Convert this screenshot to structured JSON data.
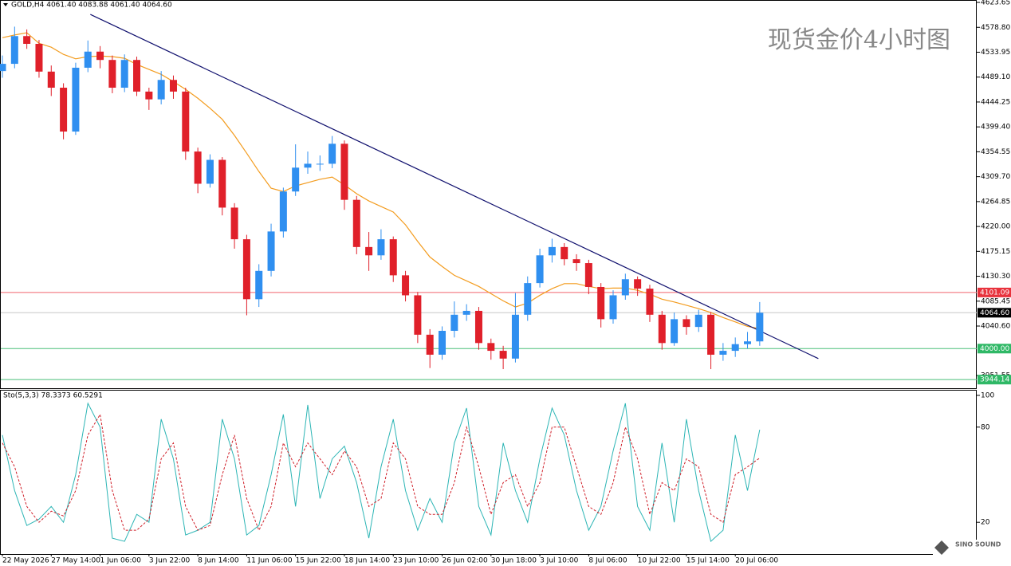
{
  "chart_data": [
    {
      "type": "candlestick",
      "header": "GOLD,H4  4061.40 4083.88 4061.40 4064.60",
      "watermark": "现货金价4小时图",
      "categories": [
        "22 May 2026",
        null,
        null,
        null,
        "27 May 14:00",
        null,
        null,
        null,
        "1 Jun 06:00",
        null,
        null,
        null,
        "3 Jun 22:00",
        null,
        null,
        null,
        "8 Jun 14:00",
        null,
        null,
        null,
        "11 Jun 06:00",
        null,
        null,
        null,
        "15 Jun 22:00",
        null,
        null,
        null,
        "18 Jun 14:00",
        null,
        null,
        null,
        "23 Jun 10:00",
        null,
        null,
        null,
        "26 Jun 02:00",
        null,
        null,
        null,
        "30 Jun 18:00",
        null,
        null,
        null,
        "3 Jul 10:00",
        null,
        null,
        null,
        "8 Jul 06:00",
        null,
        null,
        null,
        "10 Jul 22:00",
        null,
        null,
        null,
        "15 Jul 14:00",
        null,
        null,
        null,
        "20 Jul 06:00",
        null,
        null
      ],
      "open": [
        4500,
        4513,
        4563,
        4549,
        4499,
        4470,
        4391,
        4506,
        4535,
        4520,
        4470,
        4520,
        4463,
        4449,
        4484,
        4463,
        4355,
        4297,
        4340,
        4254,
        4197,
        4089,
        4140,
        4211,
        4283,
        4326,
        4333,
        4333,
        4369,
        4268,
        4183,
        4168,
        4197,
        4132,
        4096,
        4025,
        3989,
        4032,
        4061,
        4068,
        4010,
        3996,
        3982,
        4061,
        4118,
        4168,
        4183,
        4161,
        4154,
        4111,
        4053,
        4096,
        4125,
        4108,
        4061,
        4010,
        4053,
        4039,
        4061,
        3989,
        3996,
        4008,
        4013
      ],
      "high": [
        4528,
        4580,
        4575,
        4556,
        4510,
        4478,
        4515,
        4555,
        4545,
        4528,
        4530,
        4526,
        4470,
        4500,
        4492,
        4470,
        4362,
        4350,
        4345,
        4262,
        4205,
        4152,
        4225,
        4290,
        4368,
        4355,
        4348,
        4383,
        4375,
        4275,
        4210,
        4215,
        4202,
        4140,
        4102,
        4035,
        4040,
        4085,
        4080,
        4075,
        4018,
        4005,
        4100,
        4130,
        4180,
        4198,
        4190,
        4170,
        4160,
        4118,
        4105,
        4135,
        4130,
        4115,
        4068,
        4065,
        4060,
        4070,
        4066,
        4010,
        4020,
        4030,
        4083.88
      ],
      "low": [
        4488,
        4505,
        4540,
        4488,
        4455,
        4377,
        4385,
        4498,
        4505,
        4460,
        4462,
        4455,
        4430,
        4440,
        4450,
        4340,
        4280,
        4290,
        4240,
        4180,
        4060,
        4075,
        4130,
        4200,
        4275,
        4315,
        4320,
        4325,
        4250,
        4170,
        4140,
        4160,
        4120,
        4085,
        4010,
        3965,
        3980,
        4020,
        4050,
        3998,
        3980,
        3963,
        3975,
        4050,
        4110,
        4155,
        4150,
        4140,
        4098,
        4038,
        4045,
        4088,
        4095,
        4048,
        3998,
        4005,
        4025,
        4030,
        3963,
        3978,
        3985,
        4000,
        4005
      ],
      "close": [
        4513,
        4563,
        4549,
        4499,
        4470,
        4391,
        4506,
        4535,
        4520,
        4470,
        4520,
        4463,
        4449,
        4484,
        4463,
        4355,
        4297,
        4340,
        4254,
        4197,
        4089,
        4140,
        4211,
        4283,
        4326,
        4333,
        4333,
        4369,
        4268,
        4183,
        4168,
        4197,
        4132,
        4096,
        4025,
        3989,
        4032,
        4061,
        4068,
        4010,
        3996,
        3982,
        4061,
        4118,
        4168,
        4183,
        4161,
        4154,
        4111,
        4053,
        4096,
        4125,
        4108,
        4061,
        4010,
        4053,
        4039,
        4061,
        3989,
        3996,
        4008,
        4013,
        4064.6
      ],
      "up_color": "#2f8ff0",
      "down_color": "#e0202a",
      "ma": {
        "color": "#f39c1f",
        "values": [
          4560,
          4565,
          4569,
          4550,
          4543,
          4530,
          4522,
          4526,
          4527,
          4526,
          4523,
          4512,
          4503,
          4494,
          4481,
          4467,
          4451,
          4433,
          4413,
          4384,
          4352,
          4319,
          4289,
          4283,
          4293,
          4299,
          4305,
          4309,
          4295,
          4279,
          4266,
          4256,
          4246,
          4223,
          4193,
          4165,
          4148,
          4132,
          4122,
          4112,
          4099,
          4086,
          4075,
          4082,
          4096,
          4108,
          4117,
          4117,
          4112,
          4108,
          4109,
          4109,
          4105,
          4098,
          4089,
          4084,
          4078,
          4072,
          4065,
          4056,
          4048,
          4040,
          4036
        ]
      },
      "trendline": {
        "x": [
          7.2,
          66.8
        ],
        "y": [
          4602,
          3982
        ],
        "color": "#10106e"
      },
      "price_lines": [
        {
          "value": 4101.09,
          "color": "#f0646e",
          "box": "#e8323c"
        },
        {
          "value": 4064.6,
          "label": "4064.60",
          "color": "#c8c8c8",
          "box": "#000000"
        },
        {
          "value": 4000,
          "label": "4000.00",
          "color": "#4cbf7a",
          "box": "#2fb866"
        },
        {
          "value": 3944.14,
          "color": "#4cbf7a",
          "box": "#2fb866"
        }
      ],
      "ylim": [
        3928.6,
        4628.0
      ],
      "yticks": [
        {
          "value": 4623.65,
          "label": "4623.65"
        },
        {
          "value": 4578.8,
          "label": "4578.80"
        },
        {
          "value": 4533.95,
          "label": "4533.95"
        },
        {
          "value": 4489.1,
          "label": "4489.10"
        },
        {
          "value": 4444.25,
          "label": "4444.25"
        },
        {
          "value": 4399.4,
          "label": "4399.40"
        },
        {
          "value": 4354.55,
          "label": "4354.55"
        },
        {
          "value": 4309.7,
          "label": "4309.70"
        },
        {
          "value": 4264.85,
          "label": "4264.85"
        },
        {
          "value": 4220,
          "label": "4220.00"
        },
        {
          "value": 4175.15,
          "label": "4175.15"
        },
        {
          "value": 4130.3,
          "label": "4130.30"
        },
        {
          "value": 4085.45,
          "label": "4085.45"
        },
        {
          "value": 4040.6,
          "label": "4040.60"
        },
        {
          "value": 3951.55,
          "label": "3951.55"
        }
      ]
    },
    {
      "type": "line",
      "title": "Sto(5,3,3) 78.3373 60.5291",
      "series": [
        {
          "color": "#2cb5b5",
          "values": [
            75,
            40,
            18,
            22,
            30,
            20,
            50,
            95,
            80,
            10,
            8,
            25,
            20,
            85,
            60,
            12,
            15,
            20,
            85,
            60,
            12,
            18,
            50,
            88,
            30,
            94,
            35,
            60,
            68,
            45,
            10,
            55,
            85,
            40,
            15,
            35,
            20,
            70,
            92,
            30,
            12,
            70,
            40,
            20,
            60,
            92,
            75,
            40,
            15,
            30,
            65,
            95,
            30,
            15,
            70,
            20,
            85,
            40,
            8,
            15,
            75,
            40,
            78.3373
          ]
        },
        {
          "color": "#d0202a",
          "dash": true,
          "values": [
            70,
            55,
            30,
            20,
            27,
            24,
            40,
            75,
            88,
            40,
            15,
            15,
            22,
            60,
            70,
            30,
            15,
            18,
            50,
            75,
            35,
            15,
            30,
            70,
            55,
            70,
            60,
            50,
            65,
            55,
            30,
            35,
            70,
            60,
            30,
            25,
            25,
            45,
            80,
            55,
            25,
            45,
            50,
            30,
            45,
            80,
            80,
            55,
            30,
            25,
            45,
            80,
            60,
            25,
            45,
            40,
            60,
            55,
            25,
            20,
            50,
            55,
            60.5291
          ]
        }
      ],
      "ylim": [
        0,
        103
      ],
      "yticks": [
        100,
        80,
        20
      ]
    }
  ],
  "logo": "SINO SOUND"
}
